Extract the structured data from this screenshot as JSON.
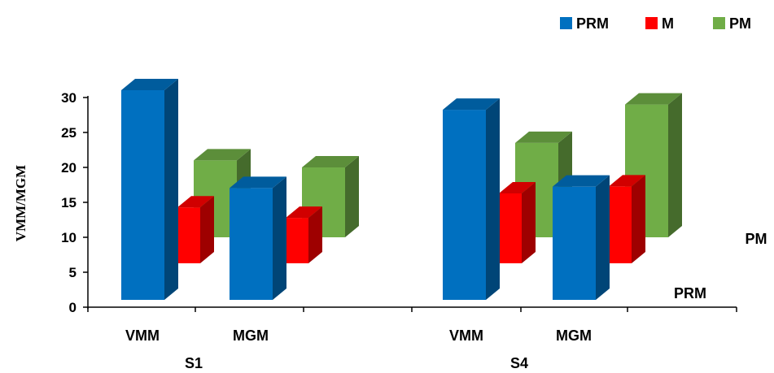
{
  "chart_data": {
    "type": "bar",
    "subtype": "3d-clustered-depth",
    "ylabel": "VMM/MGM",
    "ylim": [
      0,
      30
    ],
    "yticks": [
      "0",
      "5",
      "10",
      "15",
      "20",
      "25",
      "30"
    ],
    "groups": [
      {
        "label": "S1",
        "categories": [
          "VMM",
          "MGM"
        ]
      },
      {
        "label": "S4",
        "categories": [
          "VMM",
          "MGM"
        ]
      }
    ],
    "series": [
      {
        "name": "PRM",
        "color": "#0070C0",
        "values": [
          [
            30,
            16
          ],
          [
            27.2,
            16.2
          ]
        ]
      },
      {
        "name": "M",
        "color": "#FF0000",
        "values": [
          [
            8,
            6.5
          ],
          [
            10,
            11
          ]
        ]
      },
      {
        "name": "PM",
        "color": "#70AD47",
        "values": [
          [
            11,
            10
          ],
          [
            13.5,
            19
          ]
        ]
      }
    ],
    "depth_axis_labels": [
      "PRM",
      "PM"
    ],
    "legend_position": "top-right"
  }
}
